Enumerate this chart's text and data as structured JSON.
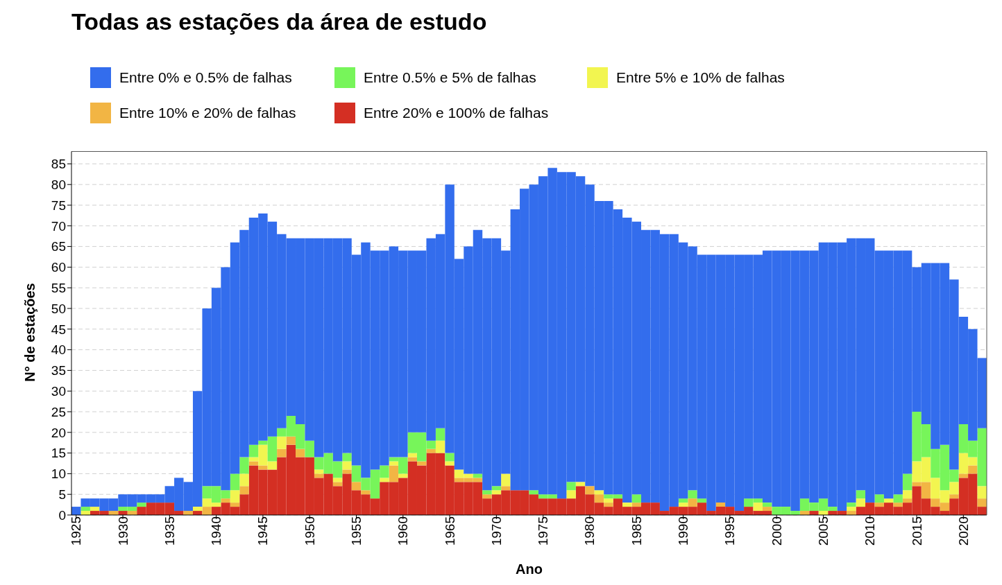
{
  "chart_data": {
    "type": "bar",
    "title": "Todas as estações da área de estudo",
    "xlabel": "Ano",
    "ylabel": "N° de estações",
    "stacked": true,
    "legend": "top",
    "grid": "y",
    "x": [
      1925,
      1926,
      1927,
      1928,
      1929,
      1930,
      1931,
      1932,
      1933,
      1934,
      1935,
      1936,
      1937,
      1938,
      1939,
      1940,
      1941,
      1942,
      1943,
      1944,
      1945,
      1946,
      1947,
      1948,
      1949,
      1950,
      1951,
      1952,
      1953,
      1954,
      1955,
      1956,
      1957,
      1958,
      1959,
      1960,
      1961,
      1962,
      1963,
      1964,
      1965,
      1966,
      1967,
      1968,
      1969,
      1970,
      1971,
      1972,
      1973,
      1974,
      1975,
      1976,
      1977,
      1978,
      1979,
      1980,
      1981,
      1982,
      1983,
      1984,
      1985,
      1986,
      1987,
      1988,
      1989,
      1990,
      1991,
      1992,
      1993,
      1994,
      1995,
      1996,
      1997,
      1998,
      1999,
      2000,
      2001,
      2002,
      2003,
      2004,
      2005,
      2006,
      2007,
      2008,
      2009,
      2010,
      2011,
      2012,
      2013,
      2014,
      2015,
      2016,
      2017,
      2018,
      2019,
      2020,
      2021,
      2022
    ],
    "xlim": [
      1924.5,
      2022.5
    ],
    "xticks": [
      1925,
      1930,
      1935,
      1940,
      1945,
      1950,
      1955,
      1960,
      1965,
      1970,
      1975,
      1980,
      1985,
      1990,
      1995,
      2000,
      2005,
      2010,
      2015,
      2020
    ],
    "ylim": [
      0,
      88
    ],
    "yticks": [
      0,
      5,
      10,
      15,
      20,
      25,
      30,
      35,
      40,
      45,
      50,
      55,
      60,
      65,
      70,
      75,
      80,
      85
    ],
    "series": [
      {
        "name": "Entre 20% e 100% de falhas",
        "color": "#d42f23",
        "values": [
          0,
          0,
          1,
          1,
          0,
          1,
          0,
          2,
          3,
          3,
          3,
          1,
          0,
          1,
          0,
          2,
          3,
          2,
          5,
          12,
          11,
          11,
          14,
          17,
          14,
          14,
          9,
          10,
          7,
          10,
          6,
          5,
          4,
          8,
          8,
          9,
          13,
          12,
          15,
          15,
          12,
          8,
          8,
          8,
          4,
          5,
          6,
          6,
          6,
          5,
          4,
          4,
          4,
          4,
          7,
          5,
          3,
          2,
          4,
          2,
          2,
          3,
          3,
          1,
          2,
          2,
          2,
          3,
          1,
          2,
          2,
          1,
          2,
          1,
          1,
          0,
          0,
          0,
          0,
          1,
          0,
          1,
          1,
          0,
          2,
          3,
          2,
          3,
          2,
          3,
          7,
          4,
          2,
          1,
          4,
          9,
          10,
          2
        ]
      },
      {
        "name": "Entre 10% e 20% de falhas",
        "color": "#f2b544",
        "values": [
          0,
          0,
          0,
          0,
          1,
          0,
          1,
          0,
          0,
          0,
          0,
          0,
          1,
          0,
          2,
          0,
          1,
          1,
          2,
          1,
          1,
          0,
          2,
          2,
          2,
          0,
          1,
          0,
          1,
          1,
          2,
          1,
          0,
          0,
          4,
          0,
          1,
          1,
          1,
          0,
          0,
          1,
          1,
          1,
          1,
          0,
          1,
          0,
          0,
          0,
          0,
          0,
          0,
          0,
          0,
          2,
          2,
          1,
          0,
          0,
          1,
          0,
          0,
          0,
          0,
          0,
          2,
          0,
          0,
          1,
          0,
          0,
          0,
          0,
          1,
          0,
          0,
          0,
          1,
          0,
          0,
          0,
          0,
          1,
          0,
          0,
          1,
          0,
          1,
          1,
          1,
          4,
          2,
          2,
          1,
          1,
          2,
          2
        ]
      },
      {
        "name": "Entre 5% e 10% de falhas",
        "color": "#f2f550",
        "values": [
          0,
          1,
          1,
          0,
          0,
          0,
          0,
          0,
          0,
          0,
          0,
          0,
          0,
          1,
          2,
          1,
          0,
          3,
          3,
          1,
          5,
          2,
          3,
          0,
          0,
          0,
          1,
          0,
          1,
          2,
          0,
          0,
          0,
          1,
          1,
          1,
          1,
          0,
          0,
          3,
          1,
          2,
          1,
          0,
          0,
          1,
          3,
          0,
          0,
          0,
          0,
          0,
          0,
          2,
          1,
          0,
          1,
          1,
          0,
          1,
          0,
          0,
          0,
          0,
          0,
          1,
          0,
          0,
          0,
          0,
          0,
          0,
          0,
          2,
          0,
          0,
          0,
          0,
          0,
          0,
          1,
          0,
          0,
          1,
          2,
          0,
          0,
          1,
          0,
          2,
          5,
          6,
          5,
          3,
          3,
          5,
          2,
          3
        ]
      },
      {
        "name": "Entre 0.5% e 5% de falhas",
        "color": "#77f55a",
        "values": [
          0,
          1,
          0,
          0,
          0,
          1,
          1,
          1,
          0,
          0,
          0,
          0,
          0,
          0,
          3,
          4,
          2,
          4,
          4,
          3,
          1,
          6,
          2,
          5,
          6,
          4,
          3,
          5,
          4,
          2,
          4,
          3,
          7,
          3,
          1,
          4,
          5,
          7,
          2,
          3,
          2,
          0,
          0,
          1,
          1,
          1,
          0,
          0,
          0,
          1,
          1,
          1,
          0,
          2,
          0,
          0,
          0,
          1,
          1,
          0,
          2,
          0,
          0,
          0,
          0,
          1,
          2,
          1,
          0,
          0,
          0,
          0,
          2,
          1,
          1,
          2,
          2,
          1,
          3,
          2,
          3,
          1,
          0,
          1,
          2,
          0,
          2,
          0,
          2,
          4,
          12,
          8,
          7,
          11,
          3,
          7,
          4,
          14
        ]
      },
      {
        "name": "Entre 0% e 0.5% de falhas",
        "color": "#336ded",
        "values": [
          2,
          2,
          2,
          3,
          3,
          3,
          3,
          2,
          2,
          2,
          4,
          8,
          7,
          28,
          43,
          48,
          54,
          56,
          55,
          55,
          55,
          52,
          47,
          43,
          45,
          49,
          53,
          52,
          54,
          52,
          51,
          57,
          53,
          52,
          51,
          50,
          44,
          44,
          49,
          47,
          65,
          51,
          55,
          59,
          61,
          60,
          54,
          68,
          73,
          74,
          77,
          79,
          79,
          75,
          74,
          73,
          70,
          71,
          69,
          69,
          66,
          66,
          66,
          67,
          66,
          62,
          59,
          59,
          62,
          60,
          61,
          62,
          59,
          59,
          61,
          62,
          62,
          63,
          60,
          61,
          62,
          64,
          65,
          64,
          61,
          64,
          59,
          60,
          59,
          54,
          35,
          39,
          45,
          44,
          46,
          26,
          27,
          17
        ]
      }
    ]
  }
}
